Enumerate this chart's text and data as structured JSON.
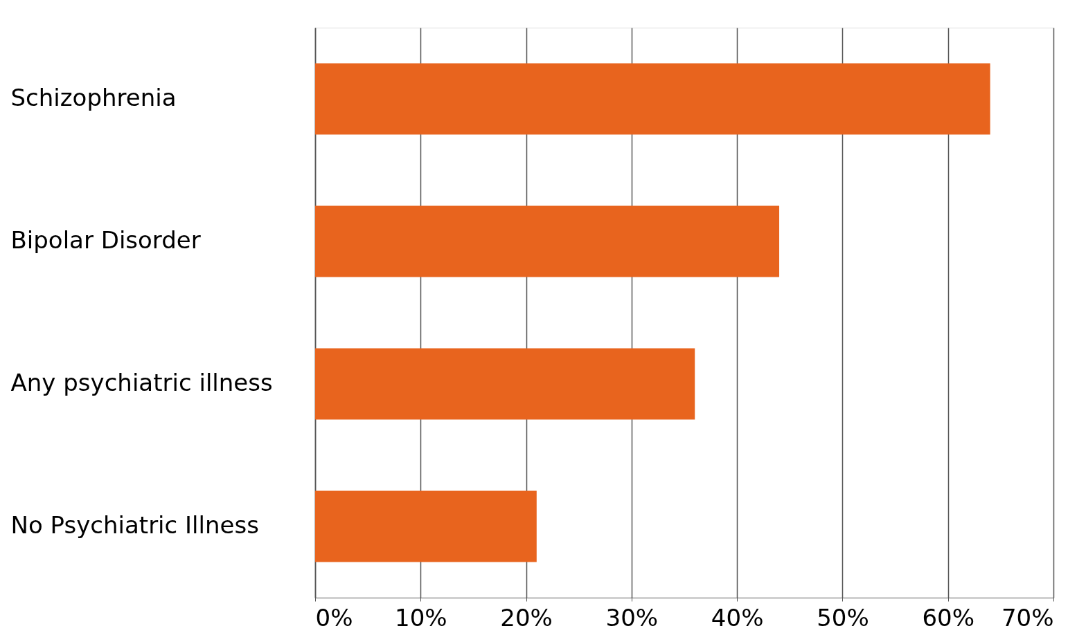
{
  "chart_data": {
    "type": "bar",
    "orientation": "horizontal",
    "categories": [
      "Schizophrenia",
      "Bipolar Disorder",
      "Any psychiatric illness",
      "No Psychiatric Illness"
    ],
    "values": [
      64,
      44,
      36,
      21
    ],
    "color": "#e8641e",
    "xlim": [
      0,
      70
    ],
    "xticks": [
      {
        "value": 0,
        "label": "0%"
      },
      {
        "value": 10,
        "label": "10%"
      },
      {
        "value": 20,
        "label": "20%"
      },
      {
        "value": 30,
        "label": "30%"
      },
      {
        "value": 40,
        "label": "40%"
      },
      {
        "value": 50,
        "label": "50%"
      },
      {
        "value": 60,
        "label": "60%"
      },
      {
        "value": 70,
        "label": "70%"
      }
    ],
    "grid": "x"
  }
}
